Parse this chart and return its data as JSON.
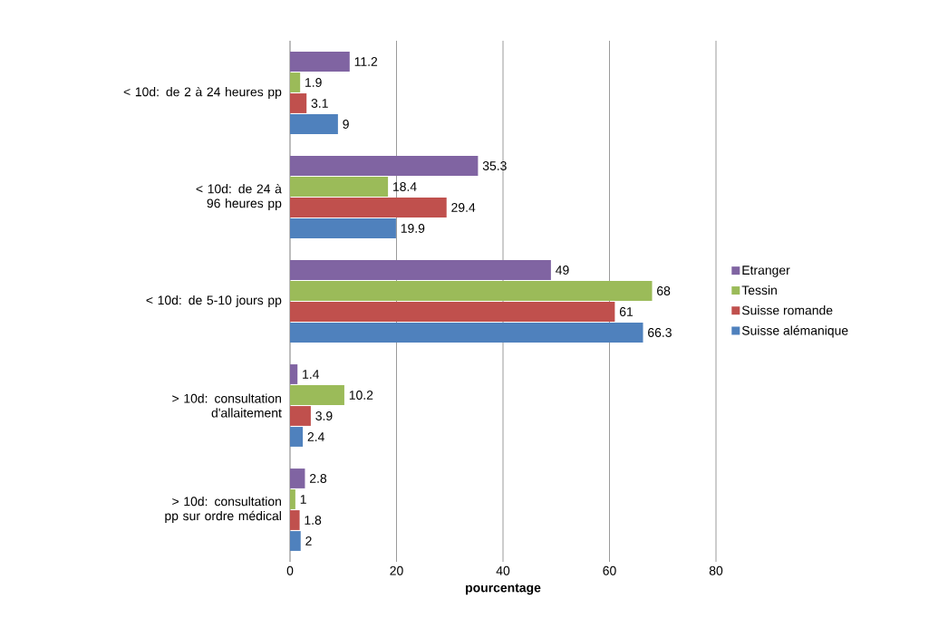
{
  "chart_data": {
    "type": "bar",
    "orientation": "horizontal",
    "xlabel": "**pourcentage**",
    "categories": [
      "< 10d: de 2 à 24 heures pp",
      "< 10d: de 24 à 96 heures pp",
      "< 10d: de 5-10 jours pp",
      "> 10d: consultation d'allaitement",
      "> 10d: consultation pp sur ordre médical"
    ],
    "series": [
      {
        "name": "Etranger",
        "color": "#8064a2",
        "values": [
          11.2,
          35.3,
          49,
          1.4,
          2.8
        ]
      },
      {
        "name": "Tessin",
        "color": "#9bbb59",
        "values": [
          1.9,
          18.4,
          68,
          10.2,
          1
        ]
      },
      {
        "name": "Suisse romande",
        "color": "#c0504d",
        "values": [
          3.1,
          29.4,
          61,
          3.9,
          1.8
        ]
      },
      {
        "name": "Suisse alémanique",
        "color": "#4f81bd",
        "values": [
          9,
          19.9,
          66.3,
          2.4,
          2
        ]
      }
    ],
    "xlim": [
      0,
      80
    ],
    "xticks": [
      0,
      20,
      40,
      60,
      80
    ],
    "grid": "x",
    "legend": "right",
    "data_labels": true
  }
}
